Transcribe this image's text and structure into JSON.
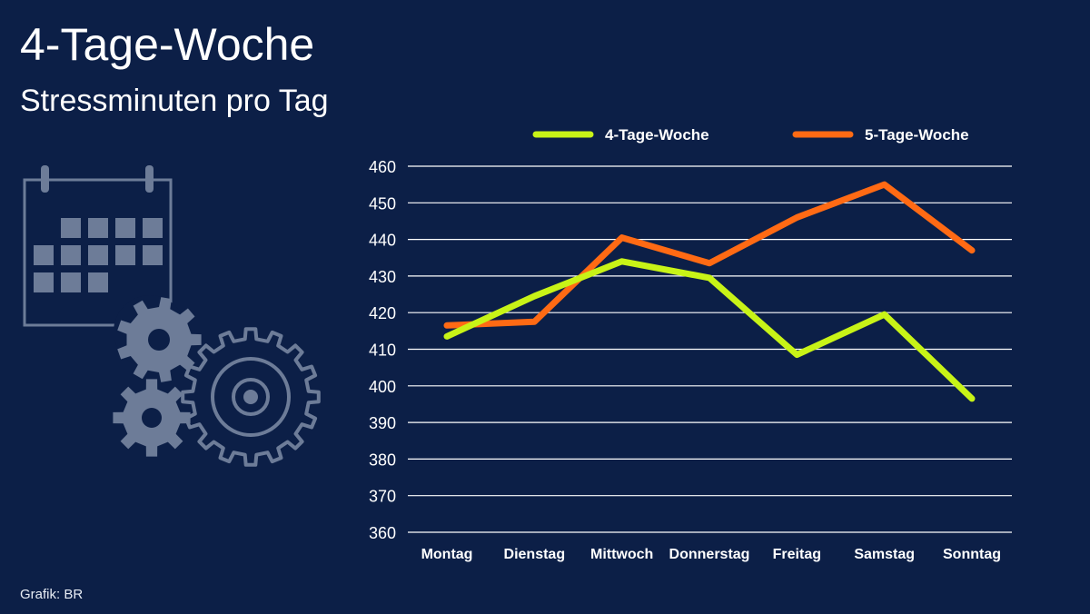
{
  "header": {
    "title": "4-Tage-Woche",
    "subtitle": "Stressminuten pro Tag"
  },
  "footer": {
    "source": "Grafik: BR"
  },
  "illustration": {
    "icons": [
      "calendar-icon",
      "gear-icon"
    ],
    "color": "#6d7c98"
  },
  "colors": {
    "background": "#0c1f47",
    "series_4": "#c8f317",
    "series_5": "#ff6a14",
    "grid": "#ffffff",
    "text": "#ffffff"
  },
  "chart_data": {
    "type": "line",
    "title": "Stressminuten pro Tag",
    "categories": [
      "Montag",
      "Dienstag",
      "Mittwoch",
      "Donnerstag",
      "Freitag",
      "Samstag",
      "Sonntag"
    ],
    "series": [
      {
        "name": "4-Tage-Woche",
        "values": [
          413.5,
          424.5,
          434,
          429.5,
          408.5,
          419.5,
          396.5
        ]
      },
      {
        "name": "5-Tage-Woche",
        "values": [
          416.5,
          417.5,
          440.5,
          433.5,
          446,
          455,
          437
        ]
      }
    ],
    "ylim": [
      360,
      460
    ],
    "yticks": [
      360,
      370,
      380,
      390,
      400,
      410,
      420,
      430,
      440,
      450,
      460
    ],
    "grid": true,
    "legend": "top"
  }
}
